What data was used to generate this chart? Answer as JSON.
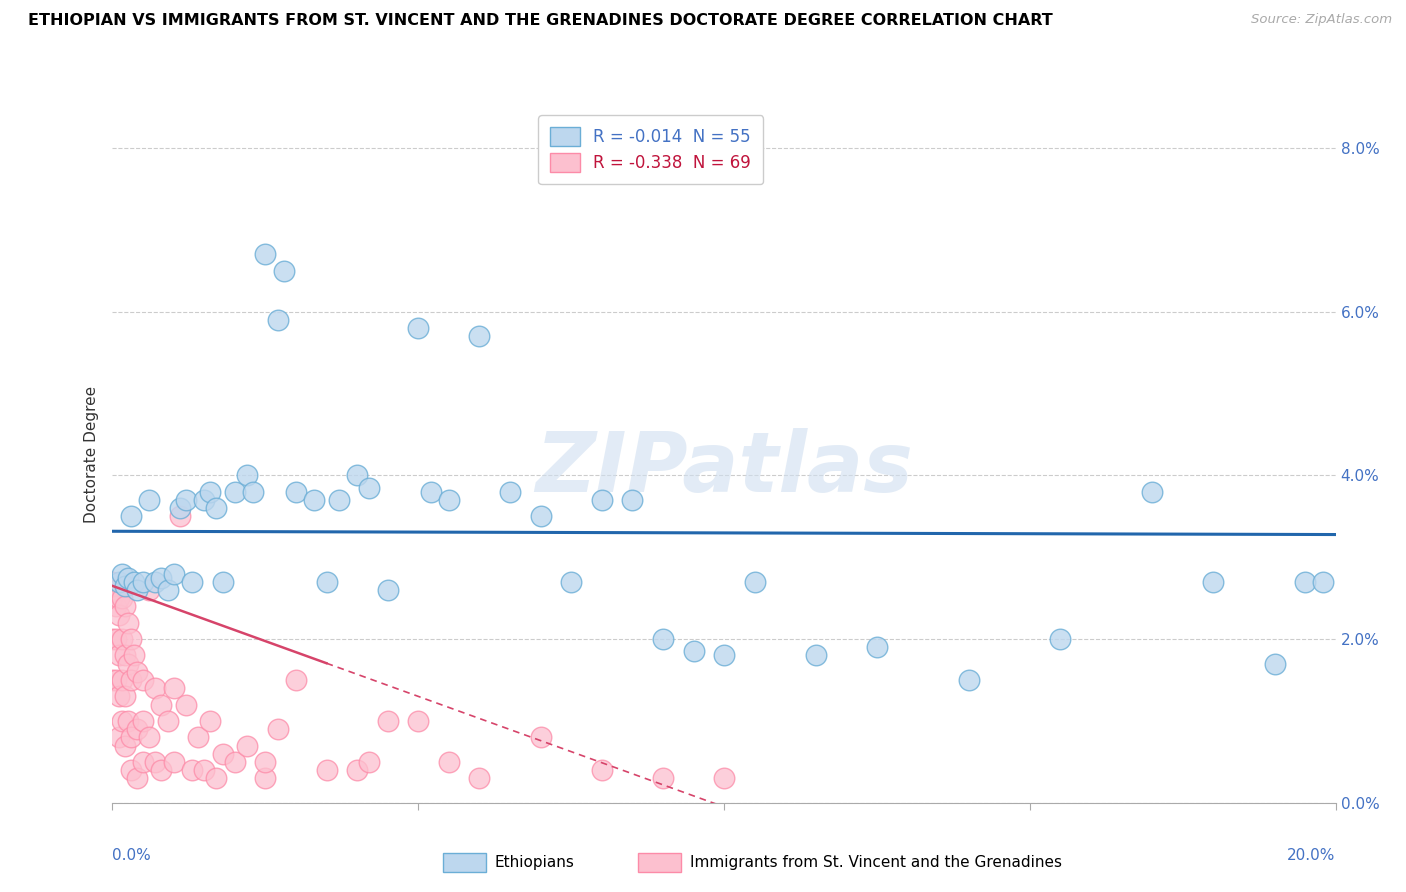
{
  "title": "ETHIOPIAN VS IMMIGRANTS FROM ST. VINCENT AND THE GRENADINES DOCTORATE DEGREE CORRELATION CHART",
  "source": "Source: ZipAtlas.com",
  "ylabel": "Doctorate Degree",
  "ytick_vals": [
    0.0,
    2.0,
    4.0,
    6.0,
    8.0
  ],
  "xlim": [
    0.0,
    20.0
  ],
  "ylim": [
    0.0,
    8.5
  ],
  "blue_color": "#6baed6",
  "pink_color": "#fc8ba8",
  "blue_fill": "#bdd7ee",
  "pink_fill": "#fcc0cf",
  "trendline_blue_color": "#2166ac",
  "trendline_pink_color": "#d6446a",
  "legend_label_blue": "R = -0.014  N = 55",
  "legend_label_pink": "R = -0.338  N = 69",
  "watermark": "ZIPatlas",
  "bottom_label_blue": "Ethiopians",
  "bottom_label_pink": "Immigrants from St. Vincent and the Grenadines",
  "eth_x": [
    0.1,
    0.15,
    0.2,
    0.25,
    0.3,
    0.35,
    0.4,
    0.5,
    0.6,
    0.7,
    0.8,
    0.9,
    1.0,
    1.1,
    1.2,
    1.3,
    1.5,
    1.6,
    1.7,
    1.8,
    2.0,
    2.2,
    2.3,
    2.5,
    2.7,
    2.8,
    3.0,
    3.3,
    3.5,
    3.7,
    4.0,
    4.2,
    4.5,
    5.0,
    5.2,
    5.5,
    6.0,
    6.5,
    7.0,
    7.5,
    8.0,
    8.5,
    9.0,
    9.5,
    10.0,
    10.5,
    11.5,
    12.5,
    14.0,
    15.5,
    17.0,
    18.0,
    19.0,
    19.5,
    19.8
  ],
  "eth_y": [
    2.7,
    2.8,
    2.65,
    2.75,
    3.5,
    2.7,
    2.6,
    2.7,
    3.7,
    2.7,
    2.75,
    2.6,
    2.8,
    3.6,
    3.7,
    2.7,
    3.7,
    3.8,
    3.6,
    2.7,
    3.8,
    4.0,
    3.8,
    6.7,
    5.9,
    6.5,
    3.8,
    3.7,
    2.7,
    3.7,
    4.0,
    3.85,
    2.6,
    5.8,
    3.8,
    3.7,
    5.7,
    3.8,
    3.5,
    2.7,
    3.7,
    3.7,
    2.0,
    1.85,
    1.8,
    2.7,
    1.8,
    1.9,
    1.5,
    2.0,
    3.8,
    2.7,
    1.7,
    2.7,
    2.7
  ],
  "svg_x": [
    0.0,
    0.0,
    0.0,
    0.0,
    0.05,
    0.05,
    0.05,
    0.05,
    0.1,
    0.1,
    0.1,
    0.1,
    0.1,
    0.15,
    0.15,
    0.15,
    0.15,
    0.2,
    0.2,
    0.2,
    0.2,
    0.25,
    0.25,
    0.25,
    0.3,
    0.3,
    0.3,
    0.3,
    0.35,
    0.4,
    0.4,
    0.4,
    0.5,
    0.5,
    0.5,
    0.6,
    0.6,
    0.7,
    0.7,
    0.8,
    0.8,
    0.9,
    1.0,
    1.0,
    1.1,
    1.2,
    1.3,
    1.4,
    1.5,
    1.6,
    1.7,
    1.8,
    2.0,
    2.2,
    2.5,
    2.5,
    2.7,
    3.0,
    3.5,
    4.0,
    4.2,
    4.5,
    5.0,
    5.5,
    6.0,
    7.0,
    8.0,
    9.0,
    10.0
  ],
  "svg_y": [
    2.7,
    2.5,
    2.0,
    1.5,
    2.6,
    2.4,
    2.0,
    1.5,
    2.5,
    2.3,
    1.8,
    1.3,
    0.8,
    2.5,
    2.0,
    1.5,
    1.0,
    2.4,
    1.8,
    1.3,
    0.7,
    2.2,
    1.7,
    1.0,
    2.0,
    1.5,
    0.8,
    0.4,
    1.8,
    1.6,
    0.9,
    0.3,
    1.5,
    1.0,
    0.5,
    2.6,
    0.8,
    1.4,
    0.5,
    1.2,
    0.4,
    1.0,
    1.4,
    0.5,
    3.5,
    1.2,
    0.4,
    0.8,
    0.4,
    1.0,
    0.3,
    0.6,
    0.5,
    0.7,
    0.3,
    0.5,
    0.9,
    1.5,
    0.4,
    0.4,
    0.5,
    1.0,
    1.0,
    0.5,
    0.3,
    0.8,
    0.4,
    0.3,
    0.3
  ]
}
